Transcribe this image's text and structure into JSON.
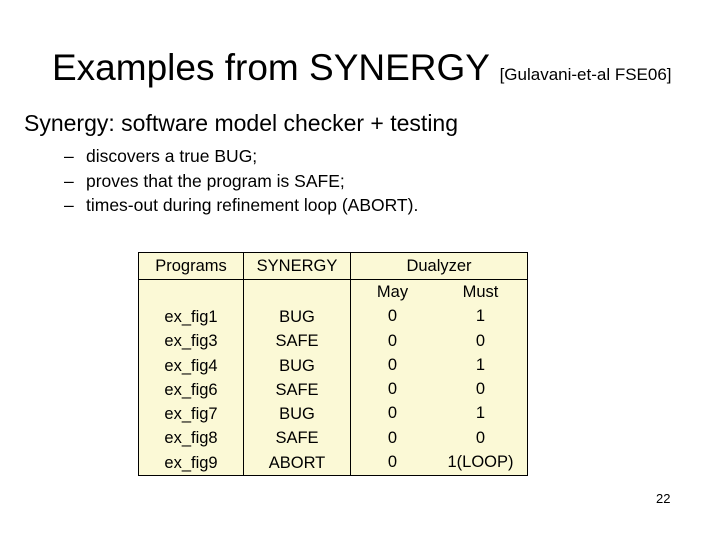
{
  "slide": {
    "title": "Examples from SYNERGY",
    "citation": "[Gulavani-et-al FSE06]",
    "subtitle": "Synergy: software model checker + testing",
    "bullets": [
      "discovers a true BUG;",
      "proves that the program is SAFE;",
      "times-out during refinement loop (ABORT)."
    ],
    "bullet_marker": "–",
    "page_number": "22"
  },
  "table": {
    "headers": {
      "programs": "Programs",
      "synergy": "SYNERGY",
      "dualyzer": "Dualyzer",
      "may": "May",
      "must": "Must"
    },
    "colors": {
      "cell_background": "#fbf9d6",
      "border": "#000000"
    },
    "rows": [
      {
        "program": "ex_fig1",
        "synergy": "BUG",
        "may": "0",
        "must": "1"
      },
      {
        "program": "ex_fig3",
        "synergy": "SAFE",
        "may": "0",
        "must": "0"
      },
      {
        "program": "ex_fig4",
        "synergy": "BUG",
        "may": "0",
        "must": "1"
      },
      {
        "program": "ex_fig6",
        "synergy": "SAFE",
        "may": "0",
        "must": "0"
      },
      {
        "program": "ex_fig7",
        "synergy": "BUG",
        "may": "0",
        "must": "1"
      },
      {
        "program": "ex_fig8",
        "synergy": "SAFE",
        "may": "0",
        "must": "0"
      },
      {
        "program": "ex_fig9",
        "synergy": "ABORT",
        "may": "0",
        "must": "1(LOOP)"
      }
    ]
  }
}
